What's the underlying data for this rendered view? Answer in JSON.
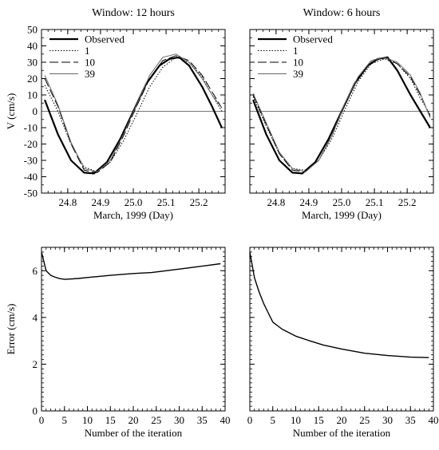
{
  "chart_data": [
    {
      "type": "line",
      "title": "Window: 12 hours",
      "xlabel": "March, 1999 (Day)",
      "ylabel": "V (cm/s)",
      "xlim": [
        24.72,
        25.28
      ],
      "ylim": [
        -50,
        50
      ],
      "xticks": [
        24.8,
        24.9,
        25.0,
        25.1,
        25.2
      ],
      "xtick_labels": [
        "24.8",
        "24.9",
        "25.0",
        "25.1",
        "25.2"
      ],
      "yticks": [
        -50,
        -40,
        -30,
        -20,
        -10,
        0,
        10,
        20,
        30,
        40,
        50
      ],
      "ytick_labels": [
        "-50",
        "-40",
        "-30",
        "-20",
        "-10",
        "0",
        "10",
        "20",
        "30",
        "40",
        "50"
      ],
      "grid": false,
      "legend": "top-left",
      "reference_line": 0,
      "series": [
        {
          "name": "Observed",
          "style": "solid-thick",
          "x": [
            24.73,
            24.77,
            24.81,
            24.85,
            24.88,
            24.92,
            24.96,
            25.0,
            25.04,
            25.08,
            25.11,
            25.14,
            25.17,
            25.21,
            25.24,
            25.27
          ],
          "values": [
            7,
            -14,
            -30,
            -37.5,
            -38,
            -31,
            -17,
            0,
            17,
            28,
            32,
            33,
            28,
            15,
            3,
            -10
          ]
        },
        {
          "name": "1",
          "style": "dotted",
          "x": [
            24.73,
            24.77,
            24.81,
            24.85,
            24.89,
            24.93,
            24.97,
            25.01,
            25.05,
            25.09,
            25.13,
            25.17,
            25.21,
            25.24,
            25.27
          ],
          "values": [
            16,
            0,
            -20,
            -34,
            -37,
            -31,
            -18,
            -2,
            15,
            27,
            33,
            30,
            21,
            10,
            0
          ]
        },
        {
          "name": "10",
          "style": "dashed",
          "x": [
            24.73,
            24.77,
            24.81,
            24.85,
            24.89,
            24.93,
            24.97,
            25.01,
            25.05,
            25.09,
            25.13,
            25.17,
            25.21,
            25.24,
            25.27
          ],
          "values": [
            20,
            3,
            -20,
            -36,
            -37.5,
            -31,
            -15,
            3,
            20,
            31,
            34,
            31,
            22,
            12,
            2
          ]
        },
        {
          "name": "39",
          "style": "solid-thin",
          "x": [
            24.73,
            24.77,
            24.81,
            24.85,
            24.89,
            24.93,
            24.97,
            25.01,
            25.05,
            25.09,
            25.13,
            25.17,
            25.21,
            25.24,
            25.27
          ],
          "values": [
            22,
            4,
            -19,
            -35,
            -37,
            -30,
            -14,
            4,
            22,
            33,
            35,
            30,
            20,
            10,
            2
          ]
        }
      ]
    },
    {
      "type": "line",
      "title": "Window: 6 hours",
      "xlabel": "March, 1999 (Day)",
      "ylabel": "",
      "xlim": [
        24.72,
        25.28
      ],
      "ylim": [
        -50,
        50
      ],
      "xticks": [
        24.8,
        24.9,
        25.0,
        25.1,
        25.2
      ],
      "xtick_labels": [
        "24.8",
        "24.9",
        "25.0",
        "25.1",
        "25.2"
      ],
      "yticks": [
        -50,
        -40,
        -30,
        -20,
        -10,
        0,
        10,
        20,
        30,
        40,
        50
      ],
      "ytick_labels": [],
      "grid": false,
      "legend": "top-left",
      "reference_line": 0,
      "series": [
        {
          "name": "Observed",
          "style": "solid-thick",
          "x": [
            24.73,
            24.77,
            24.81,
            24.85,
            24.88,
            24.92,
            24.96,
            25.0,
            25.04,
            25.08,
            25.11,
            25.14,
            25.17,
            25.21,
            25.24,
            25.27
          ],
          "values": [
            7,
            -14,
            -30,
            -37.5,
            -38,
            -31,
            -17,
            0,
            17,
            28,
            32,
            33,
            25,
            10,
            0,
            -10
          ]
        },
        {
          "name": "1",
          "style": "dotted",
          "x": [
            24.73,
            24.77,
            24.81,
            24.85,
            24.89,
            24.93,
            24.97,
            25.01,
            25.05,
            25.09,
            25.13,
            25.17,
            25.21,
            25.24,
            25.27
          ],
          "values": [
            9,
            -9,
            -26,
            -35,
            -36,
            -30,
            -17,
            1,
            18,
            29,
            32,
            29,
            20,
            8,
            -2
          ]
        },
        {
          "name": "10",
          "style": "dashed",
          "x": [
            24.73,
            24.77,
            24.81,
            24.85,
            24.89,
            24.93,
            24.97,
            25.01,
            25.05,
            25.09,
            25.13,
            25.17,
            25.21,
            25.24,
            25.27
          ],
          "values": [
            10,
            -8,
            -26,
            -36,
            -37,
            -30,
            -15,
            4,
            20,
            30,
            33,
            29,
            21,
            10,
            -3
          ]
        },
        {
          "name": "39",
          "style": "solid-thin",
          "x": [
            24.73,
            24.77,
            24.81,
            24.85,
            24.89,
            24.93,
            24.97,
            25.01,
            25.05,
            25.09,
            25.13,
            25.17,
            25.21,
            25.24,
            25.27
          ],
          "values": [
            11,
            -7,
            -25,
            -35,
            -37,
            -30,
            -15,
            5,
            21,
            31,
            33,
            30,
            22,
            11,
            -4
          ]
        }
      ]
    },
    {
      "type": "line",
      "title": "",
      "xlabel": "Number of the iteration",
      "ylabel": "Error (cm/s)",
      "xlim": [
        0,
        40
      ],
      "ylim": [
        0,
        7
      ],
      "xticks": [
        0,
        5,
        10,
        15,
        20,
        25,
        30,
        35,
        40
      ],
      "xtick_labels": [
        "0",
        "5",
        "10",
        "15",
        "20",
        "25",
        "30",
        "35",
        "40"
      ],
      "yticks": [
        0,
        2,
        4,
        6
      ],
      "ytick_labels": [
        "0",
        "2",
        "4",
        "6"
      ],
      "grid": false,
      "series": [
        {
          "x": [
            0,
            1,
            2,
            3,
            4,
            5,
            6,
            8,
            10,
            15,
            20,
            24,
            28,
            32,
            36,
            39
          ],
          "values": [
            6.8,
            6.0,
            5.8,
            5.72,
            5.66,
            5.63,
            5.64,
            5.67,
            5.71,
            5.8,
            5.88,
            5.92,
            6.02,
            6.12,
            6.22,
            6.3
          ]
        }
      ]
    },
    {
      "type": "line",
      "title": "",
      "xlabel": "Number of the iteration",
      "ylabel": "",
      "xlim": [
        0,
        40
      ],
      "ylim": [
        0,
        7
      ],
      "xticks": [
        0,
        5,
        10,
        15,
        20,
        25,
        30,
        35,
        40
      ],
      "xtick_labels": [
        "0",
        "5",
        "10",
        "15",
        "20",
        "25",
        "30",
        "35",
        "40"
      ],
      "yticks": [
        0,
        2,
        4,
        6
      ],
      "ytick_labels": [],
      "grid": false,
      "series": [
        {
          "x": [
            0,
            1,
            2,
            3,
            4,
            5,
            7,
            10,
            13,
            16,
            20,
            25,
            30,
            35,
            39
          ],
          "values": [
            6.8,
            5.7,
            5.1,
            4.6,
            4.2,
            3.8,
            3.5,
            3.2,
            3.0,
            2.82,
            2.65,
            2.47,
            2.37,
            2.3,
            2.28
          ]
        }
      ]
    }
  ]
}
